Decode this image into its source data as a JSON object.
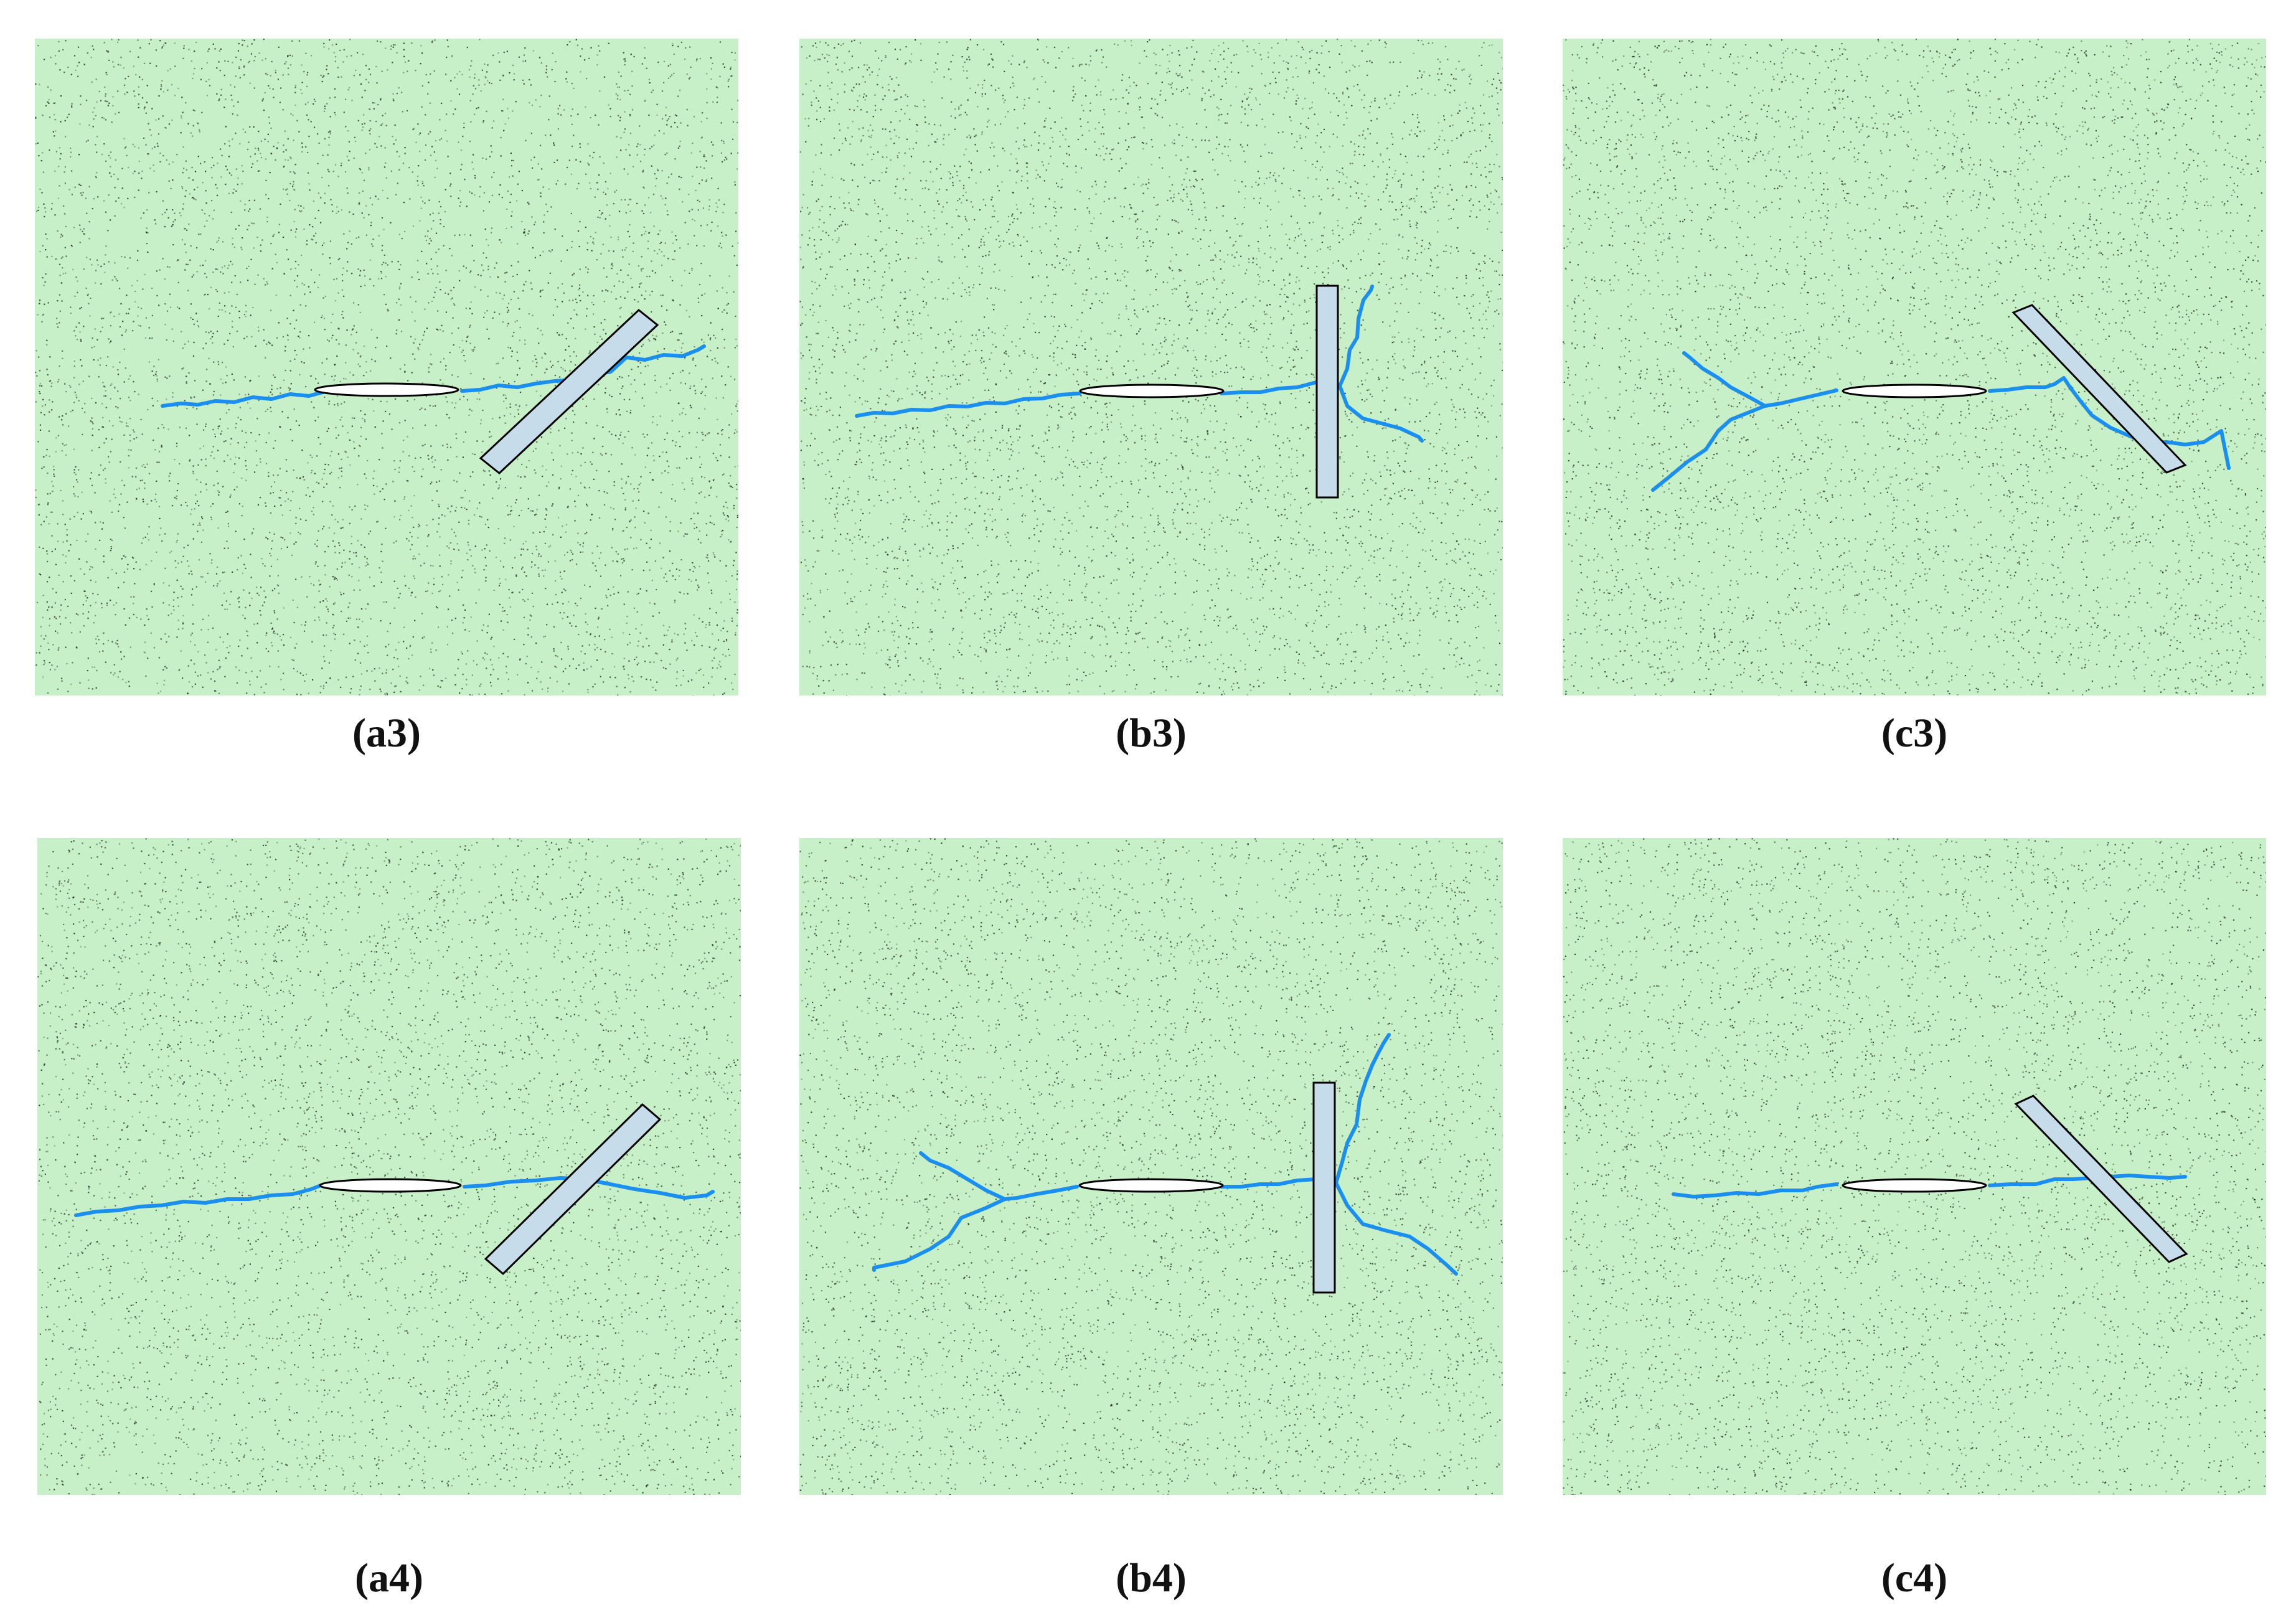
{
  "colors": {
    "background": "#c8f0c8",
    "speckle": "#1a2a1a",
    "crack": "#1a8ff0",
    "inclusion_fill": "#c7dceb",
    "flaw_fill": "#ffffff",
    "outline": "#000000"
  },
  "panels": [
    {
      "id": "a3",
      "label": "(a3)",
      "inclusion": "inclined",
      "crack_pattern": "right-crack-through-inclusion"
    },
    {
      "id": "b3",
      "label": "(b3)",
      "inclusion": "vertical",
      "crack_pattern": "right-crack-branching-at-inclusion"
    },
    {
      "id": "c3",
      "label": "(c3)",
      "inclusion": "inclined-reverse",
      "crack_pattern": "both-tips-branching"
    },
    {
      "id": "a4",
      "label": "(a4)",
      "inclusion": "inclined",
      "crack_pattern": "right-crack-through-inclusion"
    },
    {
      "id": "b4",
      "label": "(b4)",
      "inclusion": "vertical",
      "crack_pattern": "both-tips-branching"
    },
    {
      "id": "c4",
      "label": "(c4)",
      "inclusion": "inclined-reverse",
      "crack_pattern": "right-crack-through-inclusion"
    }
  ]
}
